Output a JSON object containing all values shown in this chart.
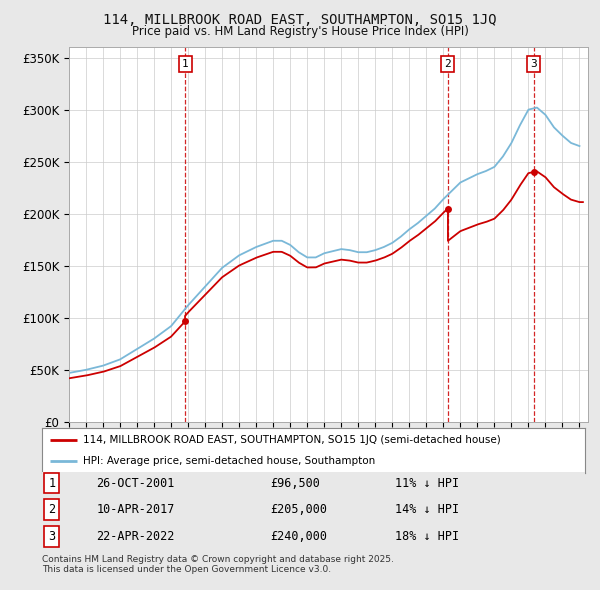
{
  "title": "114, MILLBROOK ROAD EAST, SOUTHAMPTON, SO15 1JQ",
  "subtitle": "Price paid vs. HM Land Registry's House Price Index (HPI)",
  "background_color": "#e8e8e8",
  "plot_bg_color": "#ffffff",
  "grid_color": "#cccccc",
  "hpi_color": "#7ab8d8",
  "price_color": "#cc0000",
  "vline_color": "#cc0000",
  "ylim": [
    0,
    360000
  ],
  "yticks": [
    0,
    50000,
    100000,
    150000,
    200000,
    250000,
    300000,
    350000
  ],
  "ytick_labels": [
    "£0",
    "£50K",
    "£100K",
    "£150K",
    "£200K",
    "£250K",
    "£300K",
    "£350K"
  ],
  "sale_year_floats": [
    2001.82,
    2017.27,
    2022.3
  ],
  "sale_prices": [
    96500,
    205000,
    240000
  ],
  "sale_labels": [
    "1",
    "2",
    "3"
  ],
  "sale_info": [
    {
      "label": "1",
      "date": "26-OCT-2001",
      "price": "£96,500",
      "note": "11% ↓ HPI"
    },
    {
      "label": "2",
      "date": "10-APR-2017",
      "price": "£205,000",
      "note": "14% ↓ HPI"
    },
    {
      "label": "3",
      "date": "22-APR-2022",
      "price": "£240,000",
      "note": "18% ↓ HPI"
    }
  ],
  "legend_price_label": "114, MILLBROOK ROAD EAST, SOUTHAMPTON, SO15 1JQ (semi-detached house)",
  "legend_hpi_label": "HPI: Average price, semi-detached house, Southampton",
  "footer": "Contains HM Land Registry data © Crown copyright and database right 2025.\nThis data is licensed under the Open Government Licence v3.0.",
  "hpi_years": [
    1995,
    1995.5,
    1996,
    1996.5,
    1997,
    1997.5,
    1998,
    1998.5,
    1999,
    1999.5,
    2000,
    2000.5,
    2001,
    2001.5,
    2002,
    2002.5,
    2003,
    2003.5,
    2004,
    2004.5,
    2005,
    2005.5,
    2006,
    2006.5,
    2007,
    2007.5,
    2008,
    2008.5,
    2009,
    2009.5,
    2010,
    2010.5,
    2011,
    2011.5,
    2012,
    2012.5,
    2013,
    2013.5,
    2014,
    2014.5,
    2015,
    2015.5,
    2016,
    2016.5,
    2017,
    2017.5,
    2018,
    2018.5,
    2019,
    2019.5,
    2020,
    2020.5,
    2021,
    2021.5,
    2022,
    2022.5,
    2023,
    2023.5,
    2024,
    2024.5,
    2025
  ],
  "hpi_values": [
    47000,
    48500,
    50000,
    52000,
    54000,
    57000,
    60000,
    65000,
    70000,
    75000,
    80000,
    86000,
    92000,
    102000,
    112000,
    121000,
    130000,
    139000,
    148000,
    154000,
    160000,
    164000,
    168000,
    171000,
    174000,
    174000,
    170000,
    163000,
    158000,
    158000,
    162000,
    164000,
    166000,
    165000,
    163000,
    163000,
    165000,
    168000,
    172000,
    178000,
    185000,
    191000,
    198000,
    205000,
    214000,
    222000,
    230000,
    234000,
    238000,
    241000,
    245000,
    255000,
    268000,
    285000,
    300000,
    302000,
    295000,
    283000,
    275000,
    268000,
    265000
  ]
}
